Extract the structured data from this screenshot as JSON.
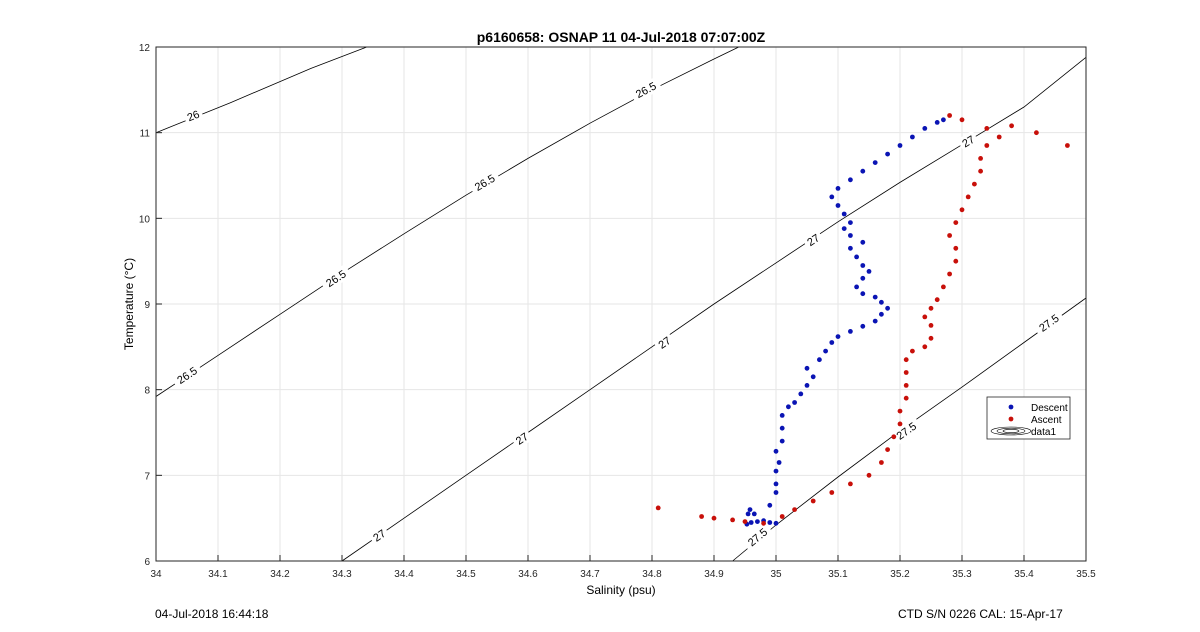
{
  "chart_data": {
    "type": "scatter",
    "title": "p6160658: OSNAP 11 04-Jul-2018 07:07:00Z",
    "xlabel": "Salinity (psu)",
    "ylabel": "Temperature (°C)",
    "xlim": [
      34,
      35.5
    ],
    "ylim": [
      6,
      12
    ],
    "x_ticks": [
      "34",
      "34.1",
      "34.2",
      "34.3",
      "34.4",
      "34.5",
      "34.6",
      "34.7",
      "34.8",
      "34.9",
      "35",
      "35.1",
      "35.2",
      "35.3",
      "35.4",
      "35.5"
    ],
    "y_ticks": [
      "6",
      "7",
      "8",
      "9",
      "10",
      "11",
      "12"
    ],
    "grid": true,
    "legend_position": "right",
    "legend": [
      "Descent",
      "Ascent",
      "data1"
    ],
    "colors": {
      "descent": "#0a14b4",
      "ascent": "#c8100a",
      "contour": "#000000",
      "grid": "#e6e6e6",
      "axis": "#262626"
    },
    "contours": [
      {
        "label": "26",
        "points": [
          [
            34.0,
            11.0
          ],
          [
            34.12,
            11.35
          ],
          [
            34.25,
            11.75
          ],
          [
            34.34,
            12.0
          ]
        ],
        "labels_at": [
          [
            34.06,
            11.2
          ]
        ]
      },
      {
        "label": "26.5",
        "points": [
          [
            34.0,
            7.92
          ],
          [
            34.1,
            8.4
          ],
          [
            34.2,
            8.88
          ],
          [
            34.3,
            9.36
          ],
          [
            34.4,
            9.82
          ],
          [
            34.5,
            10.27
          ],
          [
            34.6,
            10.7
          ],
          [
            34.7,
            11.11
          ],
          [
            34.8,
            11.5
          ],
          [
            34.9,
            11.86
          ],
          [
            34.94,
            12.0
          ]
        ],
        "labels_at": [
          [
            34.05,
            8.17
          ],
          [
            34.29,
            9.3
          ],
          [
            34.53,
            10.42
          ],
          [
            34.79,
            11.5
          ]
        ]
      },
      {
        "label": "27",
        "points": [
          [
            34.3,
            6.0
          ],
          [
            34.4,
            6.5
          ],
          [
            34.5,
            7.0
          ],
          [
            34.6,
            7.5
          ],
          [
            34.7,
            8.0
          ],
          [
            34.8,
            8.5
          ],
          [
            34.9,
            9.0
          ],
          [
            35.0,
            9.48
          ],
          [
            35.1,
            9.96
          ],
          [
            35.2,
            10.42
          ],
          [
            35.3,
            10.86
          ],
          [
            35.4,
            11.3
          ],
          [
            35.5,
            11.88
          ]
        ],
        "labels_at": [
          [
            34.36,
            6.3
          ],
          [
            34.59,
            7.43
          ],
          [
            34.82,
            8.55
          ],
          [
            35.06,
            9.75
          ],
          [
            35.31,
            10.9
          ]
        ]
      },
      {
        "label": "27.5",
        "points": [
          [
            34.93,
            6.0
          ],
          [
            35.0,
            6.42
          ],
          [
            35.1,
            6.98
          ],
          [
            35.2,
            7.52
          ],
          [
            35.3,
            8.03
          ],
          [
            35.4,
            8.55
          ],
          [
            35.5,
            9.07
          ]
        ],
        "labels_at": [
          [
            34.97,
            6.28
          ],
          [
            35.21,
            7.52
          ],
          [
            35.44,
            8.78
          ]
        ]
      }
    ],
    "series": [
      {
        "name": "Descent",
        "points": [
          [
            34.953,
            6.43
          ],
          [
            34.96,
            6.45
          ],
          [
            34.97,
            6.46
          ],
          [
            34.98,
            6.47
          ],
          [
            34.99,
            6.45
          ],
          [
            35.0,
            6.44
          ],
          [
            34.955,
            6.55
          ],
          [
            34.958,
            6.6
          ],
          [
            34.965,
            6.55
          ],
          [
            34.99,
            6.65
          ],
          [
            35.0,
            6.8
          ],
          [
            35.0,
            6.9
          ],
          [
            35.0,
            7.05
          ],
          [
            35.005,
            7.15
          ],
          [
            35.0,
            7.28
          ],
          [
            35.01,
            7.4
          ],
          [
            35.01,
            7.55
          ],
          [
            35.01,
            7.7
          ],
          [
            35.02,
            7.8
          ],
          [
            35.03,
            7.85
          ],
          [
            35.04,
            7.95
          ],
          [
            35.05,
            8.05
          ],
          [
            35.06,
            8.15
          ],
          [
            35.05,
            8.25
          ],
          [
            35.07,
            8.35
          ],
          [
            35.08,
            8.45
          ],
          [
            35.09,
            8.55
          ],
          [
            35.1,
            8.62
          ],
          [
            35.12,
            8.68
          ],
          [
            35.14,
            8.74
          ],
          [
            35.16,
            8.8
          ],
          [
            35.17,
            8.88
          ],
          [
            35.18,
            8.95
          ],
          [
            35.17,
            9.02
          ],
          [
            35.16,
            9.08
          ],
          [
            35.14,
            9.12
          ],
          [
            35.13,
            9.2
          ],
          [
            35.14,
            9.3
          ],
          [
            35.15,
            9.38
          ],
          [
            35.14,
            9.45
          ],
          [
            35.13,
            9.55
          ],
          [
            35.12,
            9.65
          ],
          [
            35.14,
            9.72
          ],
          [
            35.12,
            9.8
          ],
          [
            35.11,
            9.88
          ],
          [
            35.12,
            9.95
          ],
          [
            35.11,
            10.05
          ],
          [
            35.1,
            10.15
          ],
          [
            35.09,
            10.25
          ],
          [
            35.1,
            10.35
          ],
          [
            35.12,
            10.45
          ],
          [
            35.14,
            10.55
          ],
          [
            35.16,
            10.65
          ],
          [
            35.18,
            10.75
          ],
          [
            35.2,
            10.85
          ],
          [
            35.22,
            10.95
          ],
          [
            35.24,
            11.05
          ],
          [
            35.26,
            11.12
          ],
          [
            35.27,
            11.15
          ]
        ]
      },
      {
        "name": "Ascent",
        "points": [
          [
            34.81,
            6.62
          ],
          [
            34.88,
            6.52
          ],
          [
            34.9,
            6.5
          ],
          [
            34.93,
            6.48
          ],
          [
            34.95,
            6.46
          ],
          [
            34.98,
            6.44
          ],
          [
            35.01,
            6.52
          ],
          [
            35.03,
            6.6
          ],
          [
            35.06,
            6.7
          ],
          [
            35.09,
            6.8
          ],
          [
            35.12,
            6.9
          ],
          [
            35.15,
            7.0
          ],
          [
            35.17,
            7.15
          ],
          [
            35.18,
            7.3
          ],
          [
            35.19,
            7.45
          ],
          [
            35.2,
            7.6
          ],
          [
            35.2,
            7.75
          ],
          [
            35.21,
            7.9
          ],
          [
            35.21,
            8.05
          ],
          [
            35.21,
            8.2
          ],
          [
            35.21,
            8.35
          ],
          [
            35.22,
            8.45
          ],
          [
            35.24,
            8.5
          ],
          [
            35.25,
            8.6
          ],
          [
            35.25,
            8.75
          ],
          [
            35.24,
            8.85
          ],
          [
            35.25,
            8.95
          ],
          [
            35.26,
            9.05
          ],
          [
            35.27,
            9.2
          ],
          [
            35.28,
            9.35
          ],
          [
            35.29,
            9.5
          ],
          [
            35.29,
            9.65
          ],
          [
            35.28,
            9.8
          ],
          [
            35.29,
            9.95
          ],
          [
            35.3,
            10.1
          ],
          [
            35.31,
            10.25
          ],
          [
            35.32,
            10.4
          ],
          [
            35.33,
            10.55
          ],
          [
            35.33,
            10.7
          ],
          [
            35.34,
            10.85
          ],
          [
            35.36,
            10.95
          ],
          [
            35.34,
            11.05
          ],
          [
            35.3,
            11.15
          ],
          [
            35.28,
            11.2
          ],
          [
            35.38,
            11.08
          ],
          [
            35.42,
            11.0
          ],
          [
            35.47,
            10.85
          ]
        ]
      }
    ]
  },
  "footer": {
    "timestamp": "04-Jul-2018 16:44:18",
    "ctd_info": "CTD S/N 0226  CAL: 15-Apr-17"
  }
}
